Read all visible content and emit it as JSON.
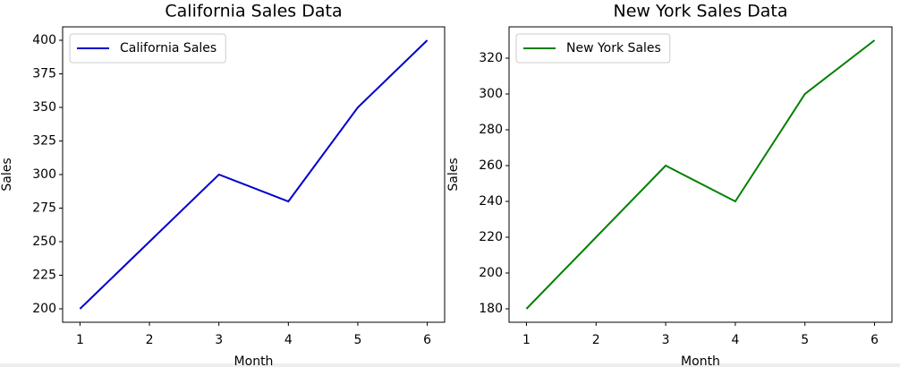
{
  "chart_data": [
    {
      "type": "line",
      "title": "California Sales Data",
      "xlabel": "Month",
      "ylabel": "Sales",
      "x": [
        1,
        2,
        3,
        4,
        5,
        6
      ],
      "series": [
        {
          "name": "California Sales",
          "color": "#0000cd",
          "values": [
            200,
            250,
            300,
            280,
            350,
            400
          ]
        }
      ],
      "xlim": [
        0.75,
        6.25
      ],
      "xticks": [
        1,
        2,
        3,
        4,
        5,
        6
      ],
      "ylim": [
        190,
        410
      ],
      "yticks": [
        200,
        225,
        250,
        275,
        300,
        325,
        350,
        375,
        400
      ],
      "grid": false,
      "legend": "upper left"
    },
    {
      "type": "line",
      "title": "New York Sales Data",
      "xlabel": "Month",
      "ylabel": "Sales",
      "x": [
        1,
        2,
        3,
        4,
        5,
        6
      ],
      "series": [
        {
          "name": "New York Sales",
          "color": "#008000",
          "values": [
            180,
            220,
            260,
            240,
            300,
            330
          ]
        }
      ],
      "xlim": [
        0.75,
        6.25
      ],
      "xticks": [
        1,
        2,
        3,
        4,
        5,
        6
      ],
      "ylim": [
        172.5,
        337.5
      ],
      "yticks": [
        180,
        200,
        220,
        240,
        260,
        280,
        300,
        320
      ],
      "grid": false,
      "legend": "upper left"
    }
  ]
}
